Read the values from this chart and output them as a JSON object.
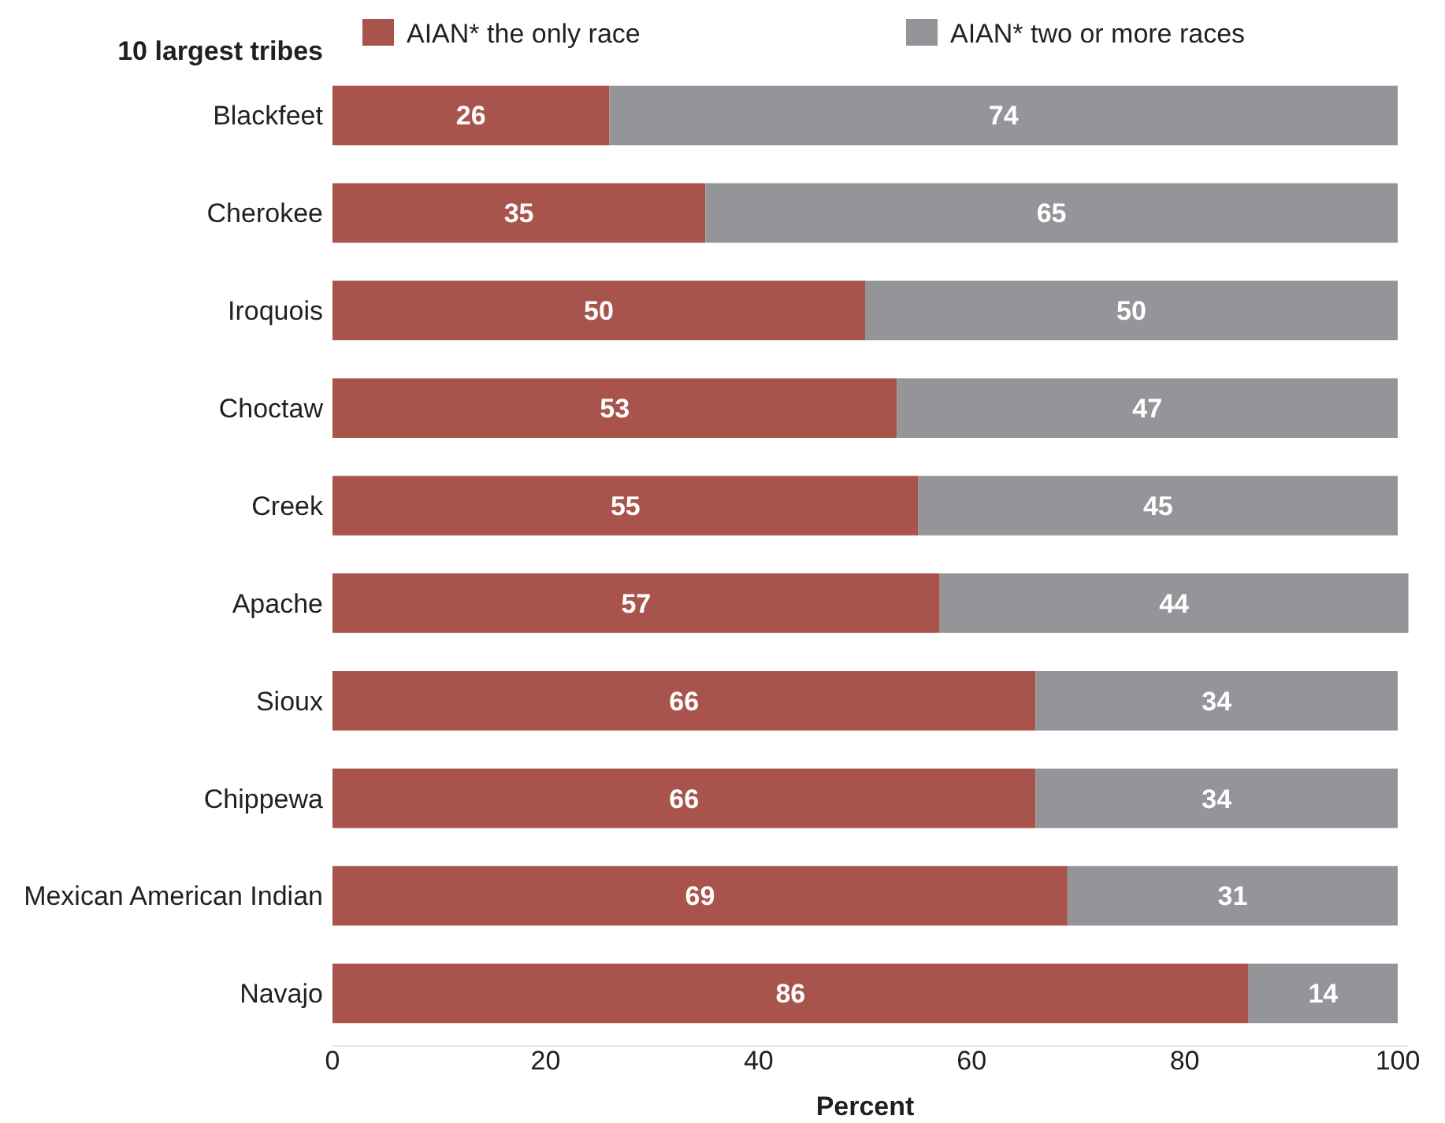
{
  "chart_data": {
    "type": "bar",
    "orientation": "horizontal",
    "stacked": true,
    "ylabel": "10 largest tribes",
    "xlabel": "Percent",
    "categories": [
      "Blackfeet",
      "Cherokee",
      "Iroquois",
      "Choctaw",
      "Creek",
      "Apache",
      "Sioux",
      "Chippewa",
      "Mexican American Indian",
      "Navajo"
    ],
    "series": [
      {
        "name": "AIAN* the only race",
        "color": "#a8534b",
        "values": [
          26,
          35,
          50,
          53,
          55,
          57,
          66,
          66,
          69,
          86
        ]
      },
      {
        "name": "AIAN* two or more races",
        "color": "#939598",
        "values": [
          74,
          65,
          50,
          47,
          45,
          44,
          34,
          34,
          31,
          14
        ]
      }
    ],
    "xlim": [
      0,
      101
    ],
    "xticks": [
      0,
      20,
      40,
      60,
      80,
      100
    ],
    "data_labels": true,
    "legend": "top",
    "grid": false
  }
}
